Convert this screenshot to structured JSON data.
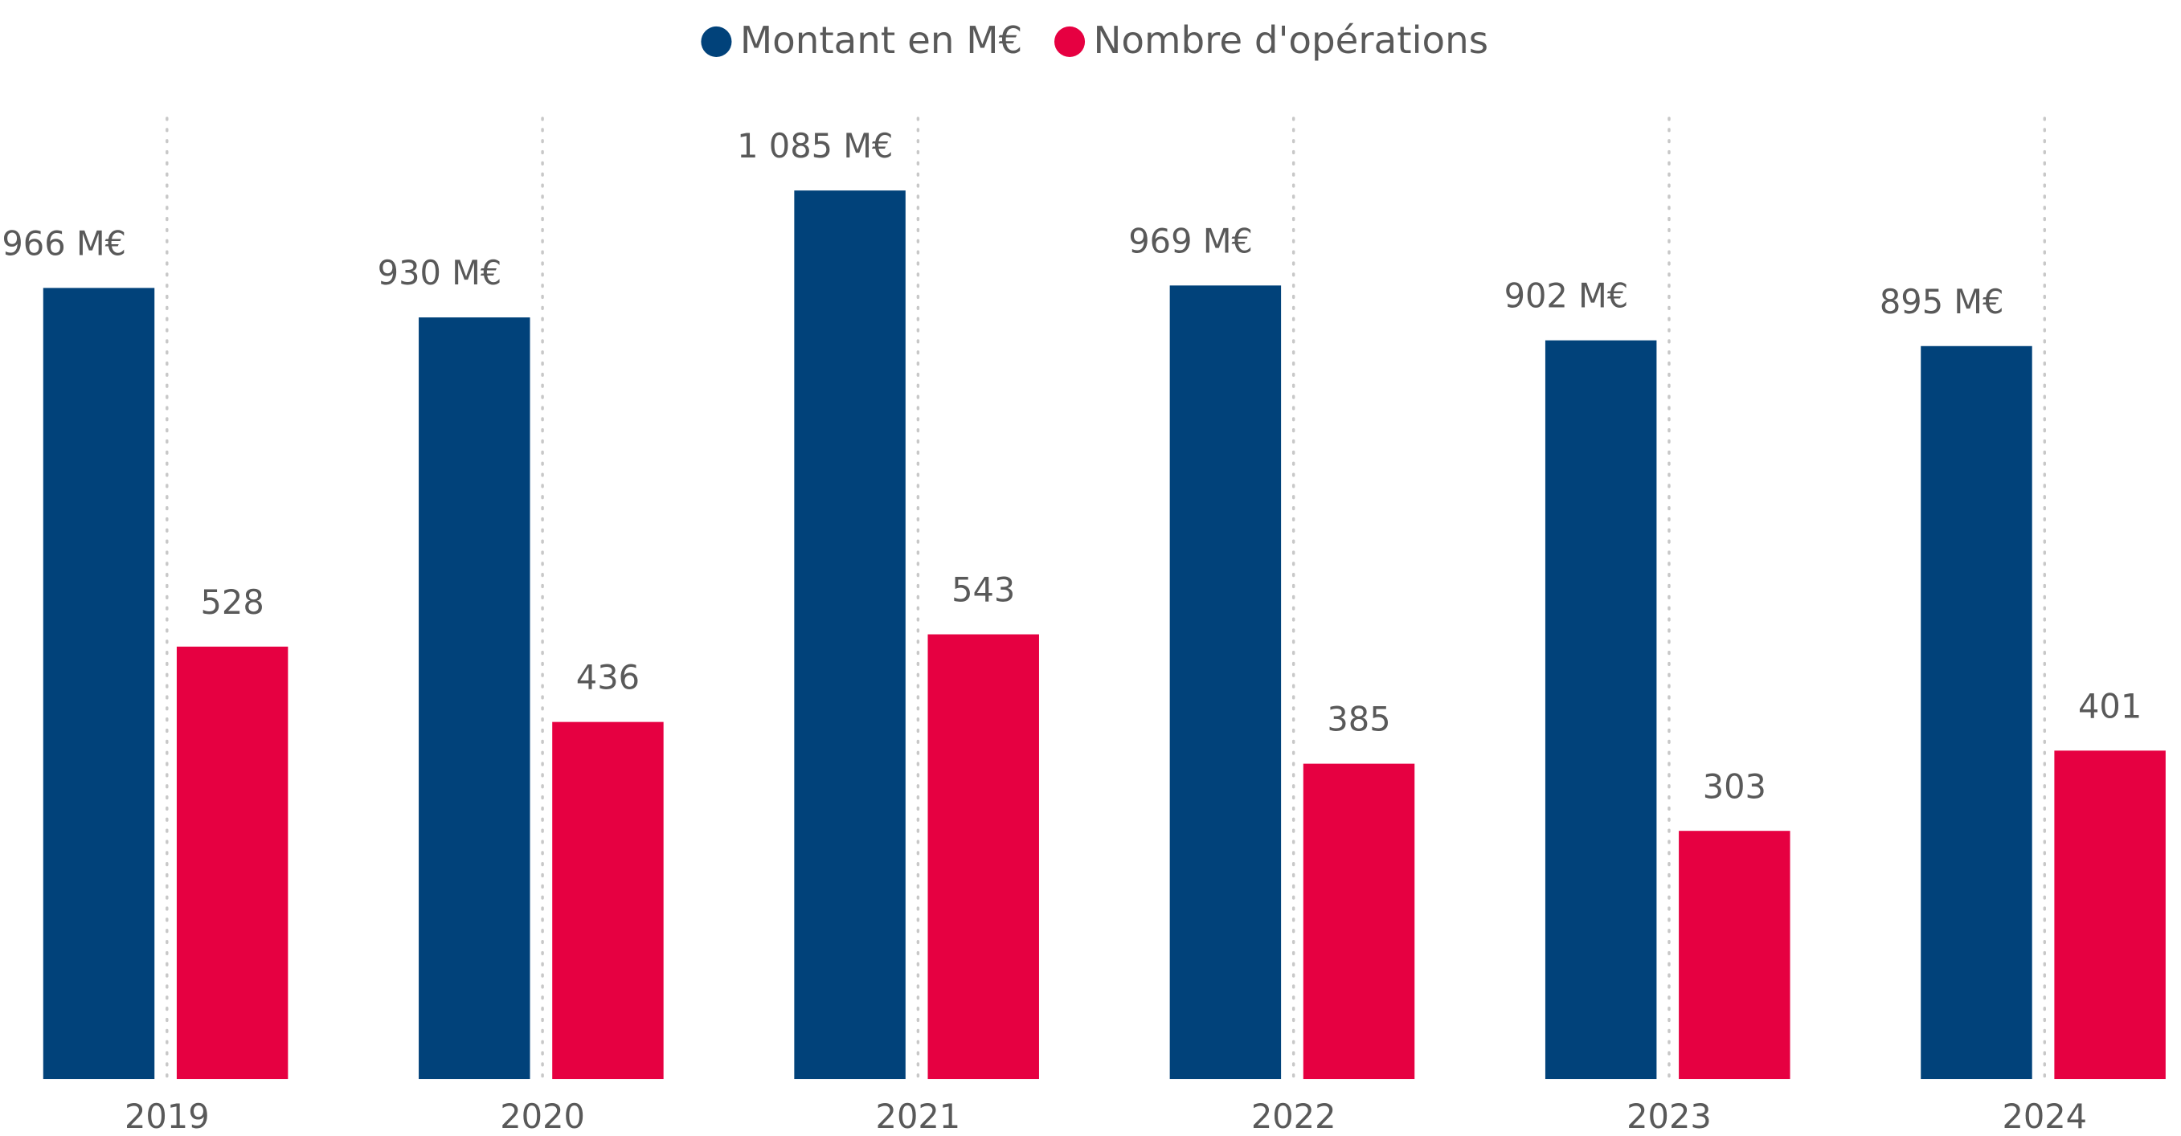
{
  "chart_data": {
    "type": "bar",
    "categories": [
      "2019",
      "2020",
      "2021",
      "2022",
      "2023",
      "2024"
    ],
    "series": [
      {
        "name": "Montant en M€",
        "color": "#01427a",
        "values": [
          966,
          930,
          1085,
          969,
          902,
          895
        ],
        "value_labels": [
          "966 M€",
          "930 M€",
          "1 085 M€",
          "969 M€",
          "902 M€",
          "895 M€"
        ]
      },
      {
        "name": "Nombre d'opérations",
        "color": "#e60041",
        "values": [
          528,
          436,
          543,
          385,
          303,
          401
        ]
      }
    ],
    "legend": "top"
  }
}
